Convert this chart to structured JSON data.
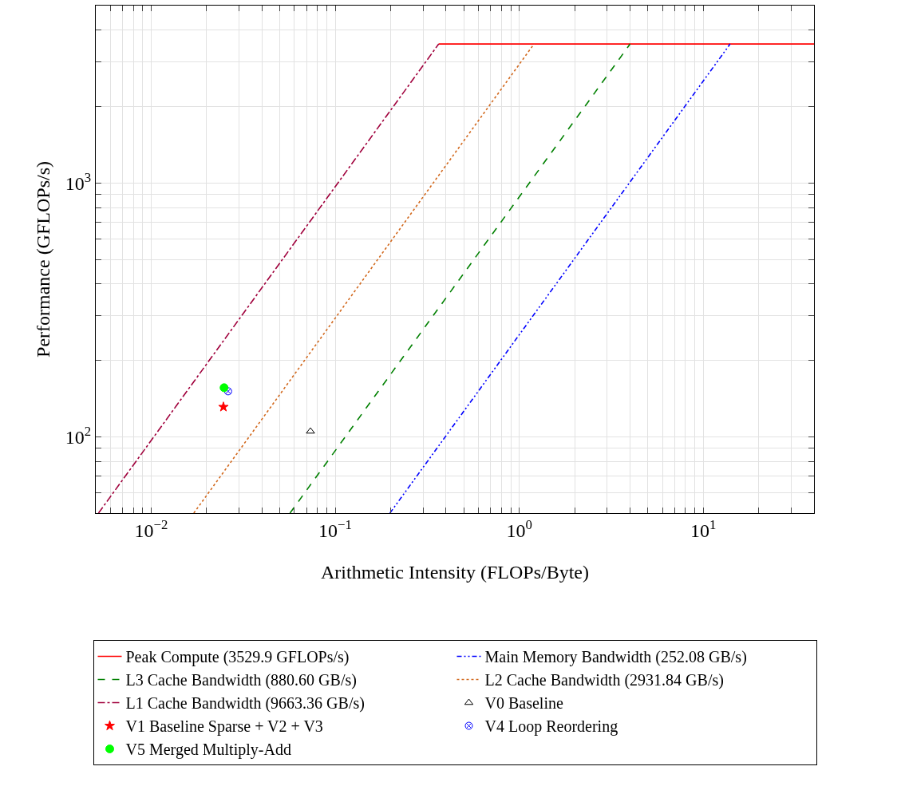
{
  "chart_data": {
    "type": "line",
    "xlabel": "Arithmetic Intensity (FLOPs/Byte)",
    "ylabel": "Performance (GFLOPs/s)",
    "log": "xy",
    "grid": true,
    "legend": "bottom",
    "xlim": [
      0.005,
      40
    ],
    "ylim": [
      50,
      5000
    ],
    "xticks": [
      {
        "value": 0.005,
        "label": null
      },
      {
        "value": 0.006,
        "label": null
      },
      {
        "value": 0.007,
        "label": null
      },
      {
        "value": 0.008,
        "label": null
      },
      {
        "value": 0.009,
        "label": null
      },
      {
        "value": 0.01,
        "label": "10$^{−2}$"
      },
      {
        "value": 0.02,
        "label": null
      },
      {
        "value": 0.03,
        "label": null
      },
      {
        "value": 0.04,
        "label": null
      },
      {
        "value": 0.05,
        "label": null
      },
      {
        "value": 0.06,
        "label": null
      },
      {
        "value": 0.07,
        "label": null
      },
      {
        "value": 0.08,
        "label": null
      },
      {
        "value": 0.09,
        "label": null
      },
      {
        "value": 0.1,
        "label": "10$^{−1}$"
      },
      {
        "value": 0.2,
        "label": null
      },
      {
        "value": 0.3,
        "label": null
      },
      {
        "value": 0.4,
        "label": null
      },
      {
        "value": 0.5,
        "label": null
      },
      {
        "value": 0.6,
        "label": null
      },
      {
        "value": 0.7,
        "label": null
      },
      {
        "value": 0.8,
        "label": null
      },
      {
        "value": 0.9,
        "label": null
      },
      {
        "value": 1,
        "label": "10$^{0}$"
      },
      {
        "value": 2,
        "label": null
      },
      {
        "value": 3,
        "label": null
      },
      {
        "value": 4,
        "label": null
      },
      {
        "value": 5,
        "label": null
      },
      {
        "value": 6,
        "label": null
      },
      {
        "value": 7,
        "label": null
      },
      {
        "value": 8,
        "label": null
      },
      {
        "value": 9,
        "label": null
      },
      {
        "value": 10,
        "label": "10$^{1}$"
      },
      {
        "value": 20,
        "label": null
      },
      {
        "value": 30,
        "label": null
      },
      {
        "value": 40,
        "label": null
      }
    ],
    "yticks": [
      {
        "value": 60,
        "label": null
      },
      {
        "value": 70,
        "label": null
      },
      {
        "value": 80,
        "label": null
      },
      {
        "value": 90,
        "label": null
      },
      {
        "value": 100,
        "label": "10$^{2}$"
      },
      {
        "value": 200,
        "label": null
      },
      {
        "value": 300,
        "label": null
      },
      {
        "value": 400,
        "label": null
      },
      {
        "value": 500,
        "label": null
      },
      {
        "value": 600,
        "label": null
      },
      {
        "value": 700,
        "label": null
      },
      {
        "value": 800,
        "label": null
      },
      {
        "value": 900,
        "label": null
      },
      {
        "value": 1000,
        "label": "10$^{3}$"
      },
      {
        "value": 2000,
        "label": null
      },
      {
        "value": 3000,
        "label": null
      },
      {
        "value": 4000,
        "label": null
      }
    ],
    "series": [
      {
        "name": "Peak Compute (3529.9 GFLOPs/s)",
        "color": "#ff0000",
        "line_style": "solid",
        "x": [
          0.3653,
          40
        ],
        "values": [
          3529.9,
          3529.9
        ]
      },
      {
        "name": "Main Memory Bandwidth (252.08 GB/s)",
        "color": "#0000ff",
        "line_style": "dashdotdot",
        "x": [
          0.1984,
          14.003
        ],
        "values": [
          50,
          3529.9
        ]
      },
      {
        "name": "L3 Cache Bandwidth (880.60 GB/s)",
        "color": "#008000",
        "line_style": "dashed",
        "x": [
          0.0568,
          4.008
        ],
        "values": [
          50,
          3529.9
        ]
      },
      {
        "name": "L2 Cache Bandwidth (2931.84 GB/s)",
        "color": "#d2691e",
        "line_style": "dotted",
        "x": [
          0.01705,
          1.204
        ],
        "values": [
          50,
          3529.9
        ]
      },
      {
        "name": "L1 Cache Bandwidth (9663.36 GB/s)",
        "color": "#a0003c",
        "line_style": "dashdot",
        "x": [
          0.005174,
          0.3653
        ],
        "values": [
          50,
          3529.9
        ]
      },
      {
        "name": "V0 Baseline",
        "type": "scatter",
        "color": "#000000",
        "marker": "triangle",
        "x": [
          0.0734
        ],
        "values": [
          105
        ]
      },
      {
        "name": "V1 Baseline Sparse + V2 + V3",
        "type": "scatter",
        "color": "#ff0000",
        "marker": "star",
        "x": [
          0.0247
        ],
        "values": [
          131
        ]
      },
      {
        "name": "V4 Loop Reordering",
        "type": "scatter",
        "color": "#0000ff",
        "marker": "cross",
        "x": [
          0.0262
        ],
        "values": [
          151
        ]
      },
      {
        "name": "V5 Merged Multiply-Add",
        "type": "scatter",
        "color": "#00ff00",
        "marker": "circle",
        "x": [
          0.0249
        ],
        "values": [
          156
        ]
      }
    ]
  }
}
